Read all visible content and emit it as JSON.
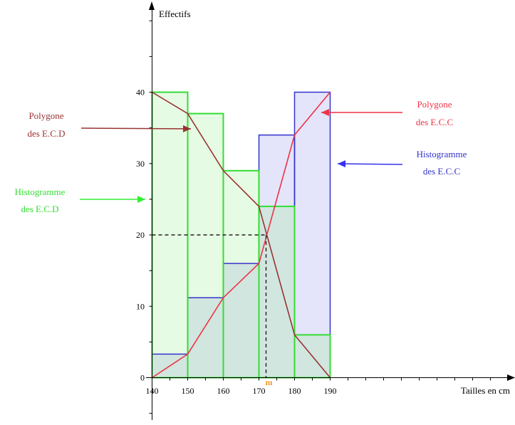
{
  "chart_data": {
    "type": "bar",
    "title": "",
    "xlabel": "Tailles en cm",
    "ylabel": "Effectifs",
    "x_ticks": [
      "140",
      "150",
      "160",
      "170",
      "180",
      "190"
    ],
    "y_ticks": [
      "0",
      "10",
      "20",
      "30",
      "40"
    ],
    "xlim": [
      140,
      190
    ],
    "ylim": [
      0,
      40
    ],
    "grid": false,
    "bins": [
      [
        140,
        150
      ],
      [
        150,
        160
      ],
      [
        160,
        170
      ],
      [
        170,
        180
      ],
      [
        180,
        190
      ]
    ],
    "series": [
      {
        "name": "Histogramme des E.C.D",
        "kind": "histogram",
        "values": [
          40,
          37,
          29,
          24,
          6
        ],
        "color": "#33dd33"
      },
      {
        "name": "Histogramme des E.C.C",
        "kind": "histogram",
        "values": [
          3.3,
          11.2,
          16,
          34,
          40
        ],
        "color": "#3333cc"
      },
      {
        "name": "Polygone des E.C.D",
        "kind": "line",
        "x": [
          140,
          150,
          160,
          170,
          180,
          190
        ],
        "y": [
          40,
          37,
          29,
          24,
          6,
          0
        ],
        "color": "#993333"
      },
      {
        "name": "Polygone des E.C.C",
        "kind": "line",
        "x": [
          140,
          150,
          160,
          170,
          180,
          190
        ],
        "y": [
          0,
          3.3,
          11.2,
          16,
          34,
          40
        ],
        "color": "#ee3344"
      }
    ],
    "annotations": {
      "median_label": "m",
      "median_x": 172,
      "median_y": 20
    },
    "legend_labels": {
      "poly_ecd": [
        "Polygone",
        "des E.C.D"
      ],
      "hist_ecd": [
        "Histogramme",
        "des E.C.D"
      ],
      "poly_ecc": [
        "Polygone",
        "des E.C.C"
      ],
      "hist_ecc": [
        "Histogramme",
        "des E.C.C"
      ]
    },
    "colors": {
      "axis": "#000000",
      "ecd_fill": "#e6fbe3",
      "ecc_fill": "#e4e4fa",
      "overlap_fill": "#d1e6df",
      "ecd_edge": "#33dd33",
      "ecc_edge": "#3333cc",
      "poly_ecd": "#993333",
      "poly_ecc": "#ee3344",
      "median_marker": "#ee9922",
      "arrow_ecd_hist": "#33ee33",
      "arrow_ecc_hist": "#3333ee"
    }
  }
}
